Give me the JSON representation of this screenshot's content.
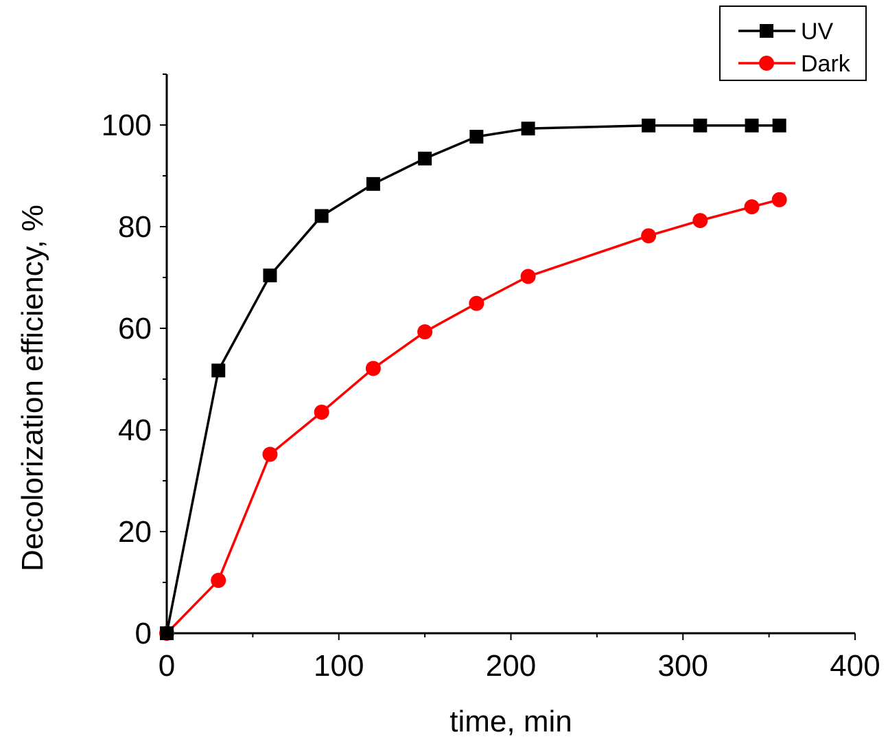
{
  "chart_data": {
    "type": "line",
    "title": "",
    "xlabel": "time, min",
    "ylabel": "Decolorization efficiency, %",
    "xlim": [
      0,
      400
    ],
    "ylim": [
      0,
      110
    ],
    "xticks": [
      0,
      100,
      200,
      300,
      400
    ],
    "yticks": [
      0,
      20,
      40,
      60,
      80,
      100
    ],
    "grid": false,
    "legend_position": "top-right",
    "series": [
      {
        "name": "UV",
        "color": "#000000",
        "marker": "square",
        "x": [
          0,
          30,
          60,
          90,
          120,
          150,
          180,
          210,
          280,
          310,
          340,
          356
        ],
        "y": [
          0,
          51.7,
          70.4,
          82.1,
          88.4,
          93.4,
          97.7,
          99.3,
          99.9,
          99.9,
          99.9,
          99.9
        ]
      },
      {
        "name": "Dark",
        "color": "#ff0000",
        "marker": "circle",
        "x": [
          0,
          30,
          60,
          90,
          120,
          150,
          180,
          210,
          280,
          310,
          340,
          356
        ],
        "y": [
          0,
          10.4,
          35.2,
          43.5,
          52.1,
          59.3,
          64.9,
          70.2,
          78.2,
          81.2,
          83.9,
          85.3
        ]
      }
    ]
  }
}
